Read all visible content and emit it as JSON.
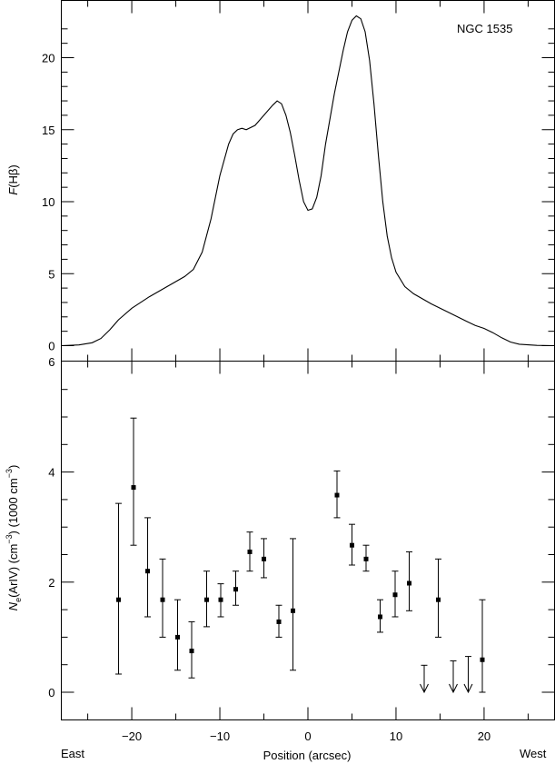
{
  "figure": {
    "object_label": "NGC 1535",
    "x_axis_label": "Position (arcsec)",
    "east_label": "East",
    "west_label": "West"
  },
  "chart_data": [
    {
      "type": "line",
      "name": "top",
      "ylabel_prefix": "F",
      "ylabel_inner": "(Hβ)",
      "xlim": [
        -28,
        28
      ],
      "ylim": [
        0,
        24
      ],
      "x_ticks": [
        -20,
        -10,
        0,
        10,
        20
      ],
      "y_ticks": [
        0,
        5,
        10,
        15,
        20
      ],
      "y_tick_labels": [
        "0",
        "5",
        "10",
        "15",
        "20"
      ],
      "series": [
        {
          "x": [
            -28,
            -26,
            -24.5,
            -23.5,
            -22.5,
            -21.5,
            -20,
            -18,
            -16,
            -14,
            -13,
            -12,
            -11,
            -10,
            -9,
            -8.5,
            -8,
            -7.5,
            -7,
            -6,
            -5,
            -4,
            -3.5,
            -3,
            -2.5,
            -2,
            -1.5,
            -1,
            -0.5,
            0,
            0.5,
            1,
            1.5,
            2,
            3,
            4,
            4.5,
            5,
            5.5,
            6,
            6.5,
            7,
            7.5,
            8,
            8.5,
            9,
            9.5,
            10,
            11,
            12,
            14,
            16,
            18,
            19,
            20,
            21,
            22,
            23,
            24,
            26,
            28
          ],
          "values": [
            0,
            0.05,
            0.2,
            0.5,
            1.1,
            1.8,
            2.6,
            3.4,
            4.1,
            4.8,
            5.3,
            6.5,
            8.8,
            11.8,
            14.0,
            14.7,
            15.0,
            15.1,
            15.0,
            15.3,
            16.0,
            16.7,
            17.0,
            16.8,
            16.0,
            14.8,
            13.2,
            11.5,
            10.0,
            9.4,
            9.5,
            10.3,
            11.8,
            14.0,
            17.5,
            20.5,
            21.8,
            22.6,
            22.9,
            22.7,
            21.8,
            19.8,
            16.8,
            13.2,
            10.0,
            7.6,
            6.1,
            5.1,
            4.1,
            3.6,
            2.9,
            2.3,
            1.7,
            1.4,
            1.2,
            0.9,
            0.55,
            0.25,
            0.1,
            0.02,
            0
          ]
        }
      ]
    },
    {
      "type": "scatter",
      "name": "bottom",
      "ylabel_parts": [
        "N",
        "e",
        "(ArIV) (cm",
        "−3",
        ") (1000 cm",
        "−3",
        ")"
      ],
      "xlim": [
        -28,
        28
      ],
      "ylim": [
        -0.5,
        6
      ],
      "x_ticks": [
        -20,
        -10,
        0,
        10,
        20
      ],
      "x_tick_labels": [
        "−20",
        "−10",
        "0",
        "10",
        "20"
      ],
      "y_ticks": [
        0,
        2,
        4,
        6
      ],
      "y_tick_labels": [
        "0",
        "2",
        "4",
        "6"
      ],
      "points": [
        {
          "x": -21.5,
          "y": 1.68,
          "lo": 0.33,
          "hi": 3.43
        },
        {
          "x": -19.8,
          "y": 3.72,
          "lo": 2.67,
          "hi": 4.98
        },
        {
          "x": -18.2,
          "y": 2.2,
          "lo": 1.37,
          "hi": 3.17
        },
        {
          "x": -16.5,
          "y": 1.68,
          "lo": 1.0,
          "hi": 2.42
        },
        {
          "x": -14.8,
          "y": 1.0,
          "lo": 0.4,
          "hi": 1.68
        },
        {
          "x": -13.2,
          "y": 0.75,
          "lo": 0.26,
          "hi": 1.28
        },
        {
          "x": -11.5,
          "y": 1.68,
          "lo": 1.19,
          "hi": 2.2
        },
        {
          "x": -9.9,
          "y": 1.68,
          "lo": 1.37,
          "hi": 1.97
        },
        {
          "x": -8.2,
          "y": 1.87,
          "lo": 1.58,
          "hi": 2.2
        },
        {
          "x": -6.6,
          "y": 2.55,
          "lo": 2.2,
          "hi": 2.91
        },
        {
          "x": -5.0,
          "y": 2.42,
          "lo": 2.08,
          "hi": 2.79
        },
        {
          "x": -3.3,
          "y": 1.28,
          "lo": 1.0,
          "hi": 1.58
        },
        {
          "x": -1.7,
          "y": 1.48,
          "lo": 0.4,
          "hi": 2.79
        },
        {
          "x": 3.3,
          "y": 3.58,
          "lo": 3.17,
          "hi": 4.02
        },
        {
          "x": 5.0,
          "y": 2.67,
          "lo": 2.31,
          "hi": 3.05
        },
        {
          "x": 6.6,
          "y": 2.42,
          "lo": 2.2,
          "hi": 2.67
        },
        {
          "x": 8.2,
          "y": 1.37,
          "lo": 1.09,
          "hi": 1.68
        },
        {
          "x": 9.9,
          "y": 1.77,
          "lo": 1.37,
          "hi": 2.2
        },
        {
          "x": 11.5,
          "y": 1.98,
          "lo": 1.48,
          "hi": 2.55
        },
        {
          "x": 14.8,
          "y": 1.68,
          "lo": 1.0,
          "hi": 2.42
        },
        {
          "x": 19.8,
          "y": 0.59,
          "lo": 0.0,
          "hi": 1.68
        }
      ],
      "upper_limits": [
        {
          "x": 13.2,
          "y": 0.49
        },
        {
          "x": 16.5,
          "y": 0.57
        },
        {
          "x": 18.2,
          "y": 0.65
        }
      ]
    }
  ]
}
